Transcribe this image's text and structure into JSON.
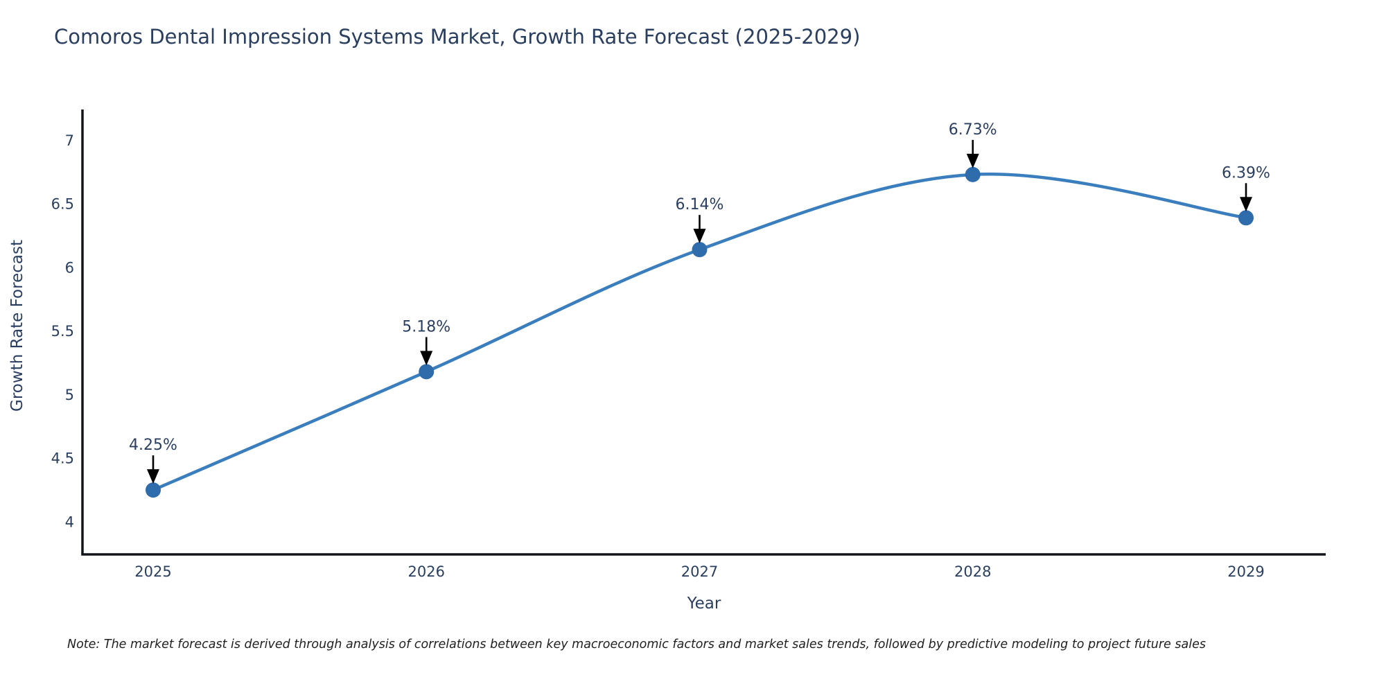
{
  "chart_data": {
    "type": "line",
    "title": "Comoros Dental Impression Systems Market, Growth Rate Forecast (2025-2029)",
    "xlabel": "Year",
    "ylabel": "Growth Rate Forecast",
    "categories": [
      "2025",
      "2026",
      "2027",
      "2028",
      "2029"
    ],
    "series": [
      {
        "name": "Growth Rate Forecast",
        "values": [
          4.25,
          5.18,
          6.14,
          6.73,
          6.39
        ]
      }
    ],
    "point_labels": [
      "4.25%",
      "5.18%",
      "6.14%",
      "6.73%",
      "6.39%"
    ],
    "yticks": [
      4,
      4.5,
      5,
      5.5,
      6,
      6.5,
      7
    ],
    "ytick_labels": [
      "4",
      "4.5",
      "5",
      "5.5",
      "6",
      "6.5",
      "7"
    ],
    "xtick_labels": [
      "2025",
      "2026",
      "2027",
      "2028",
      "2029"
    ],
    "ylim": [
      3.74,
      7.25
    ],
    "grid": false,
    "legend_position": "none",
    "line_color": "#3a7ebe",
    "marker_color": "#2f6cab",
    "axis_color": "#111418",
    "text_color": "#2a3f5f",
    "arrow_color": "#000000"
  },
  "note": {
    "text": "Note: The market forecast is derived through analysis of correlations between key macroeconomic factors and market sales trends, followed by predictive modeling to project future sales"
  }
}
